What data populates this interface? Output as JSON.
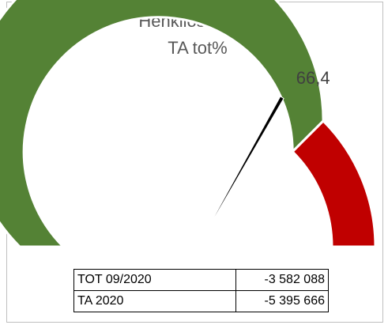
{
  "chart_data": {
    "type": "gauge",
    "title": "Henkilöstökulut",
    "subtitle": "TA tot%",
    "values": [
      66.4
    ],
    "value_labels": [
      "66,4"
    ],
    "range": [
      0,
      100
    ],
    "bands": [
      {
        "from": 0,
        "to": 75,
        "color": "#548235"
      },
      {
        "from": 75,
        "to": 100,
        "color": "#c00000"
      }
    ],
    "needle_color": "#000000"
  },
  "table": {
    "rows": [
      [
        "TOT 09/2020",
        "-3 582 088"
      ],
      [
        "TA 2020",
        "-5 395 666"
      ]
    ]
  }
}
